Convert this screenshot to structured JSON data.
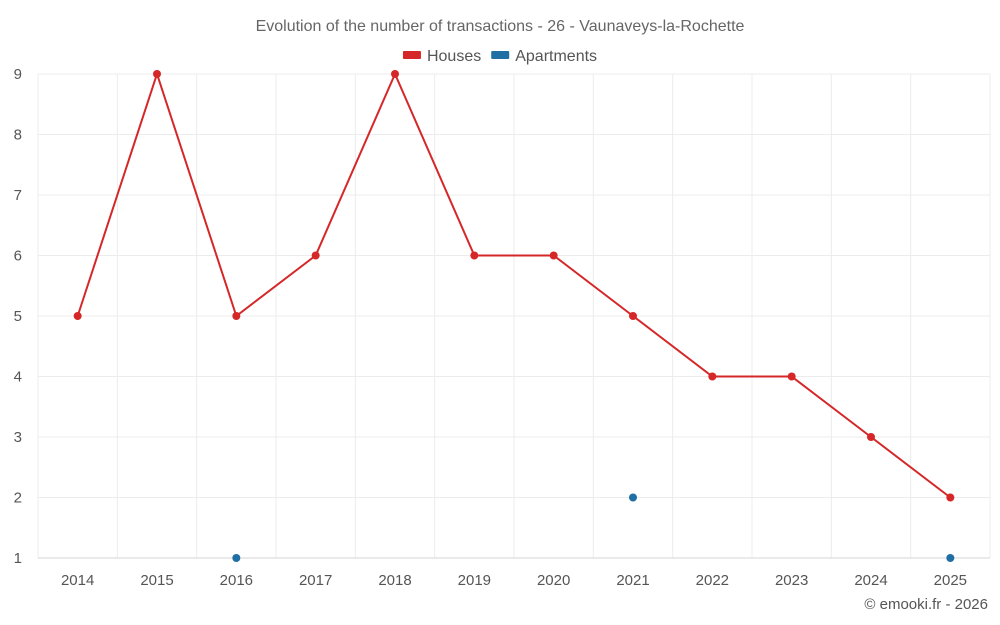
{
  "chart_data": {
    "type": "line",
    "title": "Evolution of the number of transactions - 26 - Vaunaveys-la-Rochette",
    "categories": [
      "2014",
      "2015",
      "2016",
      "2017",
      "2018",
      "2019",
      "2020",
      "2021",
      "2022",
      "2023",
      "2024",
      "2025"
    ],
    "ylim": [
      1,
      9
    ],
    "yticks": [
      1,
      2,
      3,
      4,
      5,
      6,
      7,
      8,
      9
    ],
    "grid": true,
    "legend_position": "top-center",
    "series": [
      {
        "name": "Houses",
        "color": "#d62728",
        "values": [
          5,
          9,
          5,
          6,
          9,
          6,
          6,
          5,
          4,
          4,
          3,
          2
        ]
      },
      {
        "name": "Apartments",
        "color": "#1f6fa5",
        "values": [
          null,
          null,
          1,
          null,
          null,
          null,
          null,
          2,
          null,
          null,
          null,
          1
        ]
      }
    ]
  },
  "credit": "© emooki.fr - 2026"
}
